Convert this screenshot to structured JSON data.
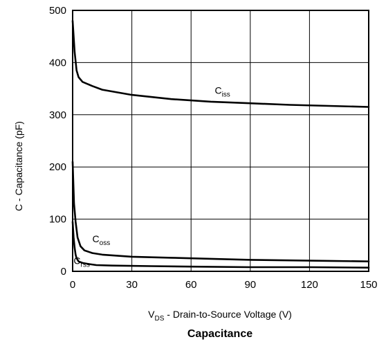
{
  "chart_data": {
    "type": "line",
    "title": "Capacitance",
    "xlabel": "VDS - Drain-to-Source Voltage (V)",
    "xlabel_main": "V",
    "xlabel_sub": "DS",
    "xlabel_rest": " - Drain-to-Source Voltage (V)",
    "ylabel": "C - Capacitance (pF)",
    "xlim": [
      0,
      150
    ],
    "ylim": [
      0,
      500
    ],
    "xticks": [
      0,
      30,
      60,
      90,
      120,
      150
    ],
    "yticks": [
      0,
      100,
      200,
      300,
      400,
      500
    ],
    "grid": true,
    "series": [
      {
        "name": "Ciss",
        "label_main": "C",
        "label_sub": "iss",
        "label_at": [
          72,
          340
        ],
        "x": [
          0,
          1,
          2,
          3,
          5,
          10,
          15,
          30,
          50,
          70,
          90,
          110,
          130,
          150
        ],
        "y": [
          480,
          420,
          385,
          372,
          363,
          355,
          348,
          338,
          330,
          325,
          322,
          319,
          317,
          315
        ]
      },
      {
        "name": "Coss",
        "label_main": "C",
        "label_sub": "oss",
        "label_at": [
          10,
          56
        ],
        "x": [
          0,
          0.7,
          1.5,
          2.5,
          4,
          6,
          10,
          15,
          30,
          50,
          70,
          90,
          110,
          130,
          150
        ],
        "y": [
          210,
          130,
          95,
          65,
          48,
          40,
          35,
          32,
          28,
          26,
          24,
          22,
          21,
          20,
          19
        ]
      },
      {
        "name": "Crss",
        "label_main": "C",
        "label_sub": "rss",
        "label_at": [
          0.5,
          14
        ],
        "x": [
          0,
          0.5,
          1,
          1.5,
          2,
          3,
          5,
          8,
          12,
          20,
          40,
          60,
          90,
          120,
          150
        ],
        "y": [
          95,
          65,
          45,
          32,
          25,
          19,
          16,
          14,
          12,
          11,
          10,
          9,
          8,
          8,
          7
        ]
      }
    ]
  }
}
